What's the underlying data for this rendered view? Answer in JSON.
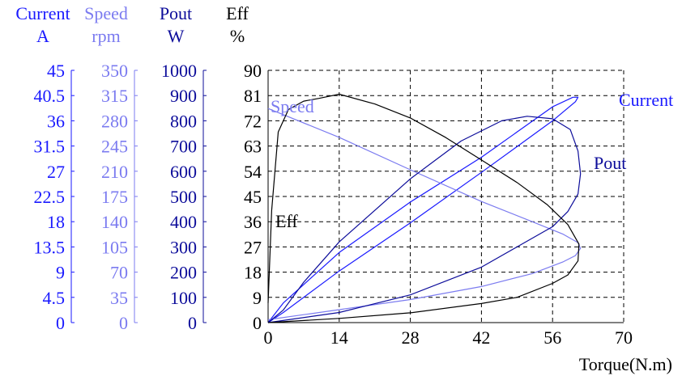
{
  "colors": {
    "current": "#1a1aff",
    "speed": "#7b7bf0",
    "pout": "#0c0c9a",
    "eff": "#000000",
    "grid": "#000000"
  },
  "chart_data": {
    "type": "line",
    "title": "",
    "grid": true,
    "xlabel": "Torque(N.m)",
    "xlim": [
      0,
      70
    ],
    "x_ticks": [
      "0",
      "14",
      "28",
      "42",
      "56",
      "70"
    ],
    "axes": [
      {
        "key": "current",
        "name": "Current",
        "unit": "A",
        "range": [
          0,
          45
        ],
        "ticks": [
          "0",
          "4.5",
          "9",
          "13.5",
          "18",
          "22.5",
          "27",
          "31.5",
          "36",
          "40.5",
          "45"
        ]
      },
      {
        "key": "speed",
        "name": "Speed",
        "unit": "rpm",
        "range": [
          0,
          350
        ],
        "ticks": [
          "0",
          "35",
          "70",
          "105",
          "140",
          "175",
          "210",
          "245",
          "280",
          "315",
          "350"
        ]
      },
      {
        "key": "pout",
        "name": "Pout",
        "unit": "W",
        "range": [
          0,
          1000
        ],
        "ticks": [
          "0",
          "100",
          "200",
          "300",
          "400",
          "500",
          "600",
          "700",
          "800",
          "900",
          "1000"
        ]
      },
      {
        "key": "eff",
        "name": "Eff",
        "unit": "%",
        "range": [
          0,
          90
        ],
        "ticks": [
          "0",
          "9",
          "18",
          "27",
          "36",
          "45",
          "54",
          "63",
          "72",
          "81",
          "90"
        ]
      }
    ],
    "series": [
      {
        "name": "Current",
        "axis": "current",
        "label": "Current",
        "points": [
          [
            0,
            0
          ],
          [
            3,
            3.5
          ],
          [
            14,
            12.5
          ],
          [
            28,
            21.5
          ],
          [
            42,
            29.5
          ],
          [
            49,
            34
          ],
          [
            56,
            38.5
          ],
          [
            60,
            40.2
          ],
          [
            61,
            40.2
          ],
          [
            60.5,
            39.4
          ],
          [
            56,
            36
          ],
          [
            42,
            26.8
          ],
          [
            28,
            17.8
          ],
          [
            14,
            9.2
          ],
          [
            3,
            1.8
          ],
          [
            0,
            0
          ]
        ]
      },
      {
        "name": "Speed",
        "axis": "speed",
        "label": "Speed",
        "points": [
          [
            0,
            297
          ],
          [
            14,
            257
          ],
          [
            28,
            212
          ],
          [
            42,
            168
          ],
          [
            52,
            140
          ],
          [
            58,
            123
          ],
          [
            61,
            111
          ],
          [
            61.5,
            103
          ],
          [
            60.5,
            93
          ],
          [
            58,
            84
          ],
          [
            52,
            68
          ],
          [
            42,
            50
          ],
          [
            28,
            32
          ],
          [
            14,
            18
          ],
          [
            0,
            4
          ]
        ]
      },
      {
        "name": "Pout",
        "axis": "pout",
        "label": "Pout",
        "points": [
          [
            0,
            0
          ],
          [
            3,
            50
          ],
          [
            7,
            160
          ],
          [
            14,
            320
          ],
          [
            28,
            570
          ],
          [
            38,
            720
          ],
          [
            46,
            800
          ],
          [
            51,
            818
          ],
          [
            56,
            808
          ],
          [
            59.5,
            765
          ],
          [
            61,
            680
          ],
          [
            61.5,
            590
          ],
          [
            61,
            510
          ],
          [
            59,
            440
          ],
          [
            56,
            380
          ],
          [
            49,
            300
          ],
          [
            42,
            220
          ],
          [
            28,
            110
          ],
          [
            14,
            40
          ],
          [
            0,
            0
          ]
        ]
      },
      {
        "name": "Eff",
        "axis": "eff",
        "label": "Eff",
        "points": [
          [
            0,
            7
          ],
          [
            0.7,
            40
          ],
          [
            2,
            68
          ],
          [
            4,
            76
          ],
          [
            7,
            79
          ],
          [
            10,
            80
          ],
          [
            14,
            81.5
          ],
          [
            21,
            78
          ],
          [
            28,
            73
          ],
          [
            35,
            66
          ],
          [
            42,
            58
          ],
          [
            49,
            50
          ],
          [
            55,
            42
          ],
          [
            59,
            35
          ],
          [
            61.2,
            28
          ],
          [
            61,
            22
          ],
          [
            59,
            17
          ],
          [
            56,
            14
          ],
          [
            49,
            9
          ],
          [
            42,
            6.8
          ],
          [
            28,
            3.5
          ],
          [
            14,
            1.5
          ],
          [
            0,
            0
          ]
        ]
      }
    ]
  }
}
